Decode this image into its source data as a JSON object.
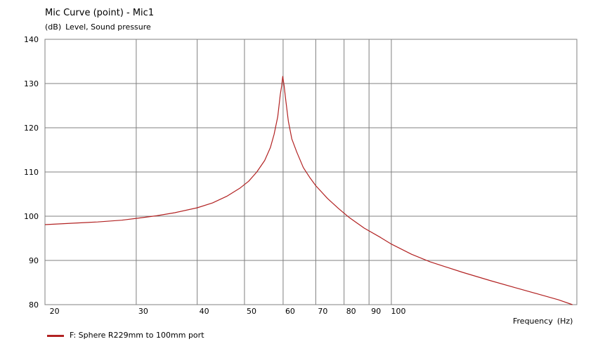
{
  "title": "Mic Curve (point) - Mic1",
  "ylabel_unit": "(dB)",
  "ylabel": "Level, Sound pressure",
  "xlabel": "Frequency",
  "xlabel_unit": "(Hz)",
  "legend_label": "F: Sphere R229mm to 100mm port",
  "chart_data": {
    "type": "line",
    "x_scale": "log",
    "xlim": [
      19.5,
      240
    ],
    "ylim": [
      80,
      140
    ],
    "x_ticks": [
      20,
      30,
      40,
      50,
      60,
      70,
      80,
      90,
      100
    ],
    "y_ticks": [
      80,
      90,
      100,
      110,
      120,
      130,
      140
    ],
    "grid": true,
    "legend_position": "bottom-left",
    "series": [
      {
        "name": "F: Sphere R229mm to 100mm port",
        "color": "#b22222",
        "x": [
          19.5,
          22,
          25,
          28,
          30,
          33,
          36,
          40,
          43,
          46,
          49,
          51,
          53,
          55,
          56.5,
          57.5,
          58.5,
          59.2,
          59.6,
          59.9,
          60.3,
          60.8,
          61.5,
          62.5,
          64,
          66,
          68,
          70,
          74,
          78,
          82,
          88,
          95,
          100,
          110,
          120,
          140,
          160,
          180,
          200,
          220,
          235
        ],
        "y": [
          98.1,
          98.4,
          98.7,
          99.1,
          99.5,
          100.1,
          100.8,
          101.9,
          103.0,
          104.5,
          106.4,
          107.9,
          110.0,
          112.6,
          115.5,
          118.5,
          122.5,
          127.5,
          129.5,
          131.6,
          129.5,
          126.0,
          121.5,
          117.5,
          114.5,
          111.0,
          108.8,
          106.9,
          104.0,
          101.7,
          99.7,
          97.3,
          95.2,
          93.7,
          91.4,
          89.7,
          87.3,
          85.4,
          83.8,
          82.4,
          81.1,
          80.0
        ]
      }
    ]
  }
}
